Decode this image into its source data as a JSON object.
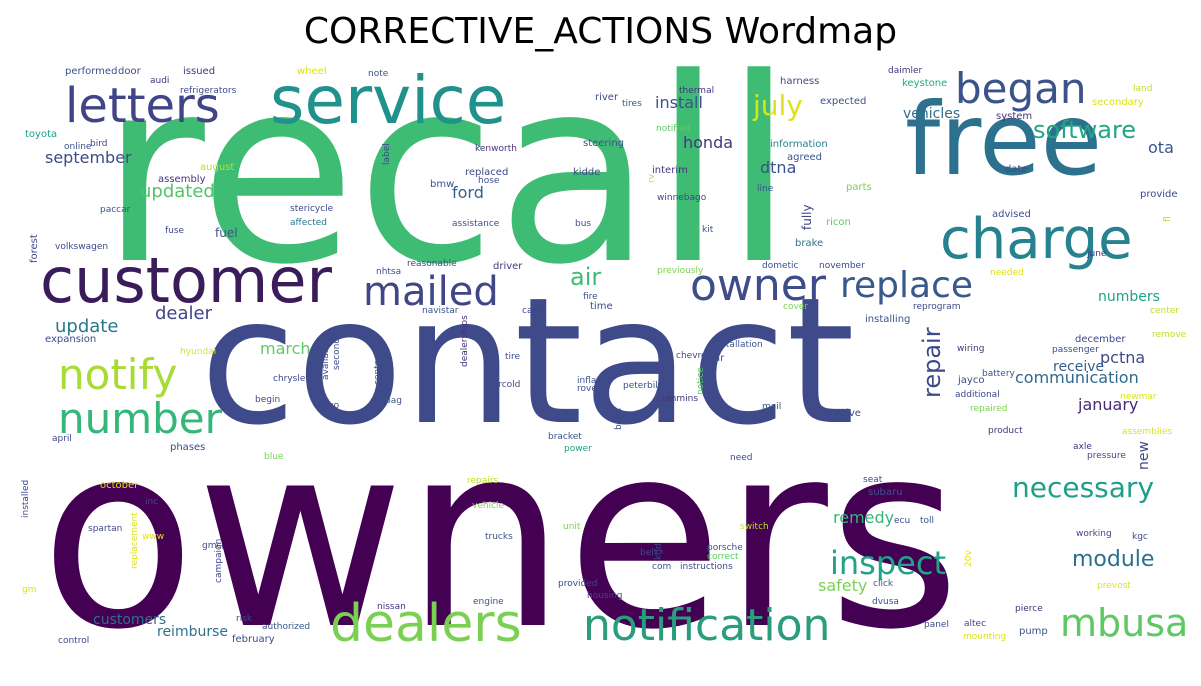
{
  "title": "CORRECTIVE_ACTIONS Wordmap",
  "words": [
    {
      "t": "owners",
      "c": "#440154"
    },
    {
      "t": "recall",
      "c": "#3fbc73"
    },
    {
      "t": "contact",
      "c": "#3e4a89"
    },
    {
      "t": "free",
      "c": "#2c728e"
    },
    {
      "t": "customer",
      "c": "#3b1c5a"
    },
    {
      "t": "service",
      "c": "#21918c"
    },
    {
      "t": "charge",
      "c": "#26828e"
    },
    {
      "t": "letters",
      "c": "#414487"
    },
    {
      "t": "dealers",
      "c": "#7ad151"
    },
    {
      "t": "notification",
      "c": "#2a9d7c"
    },
    {
      "t": "began",
      "c": "#3b528b"
    },
    {
      "t": "owner",
      "c": "#3e4c8a"
    },
    {
      "t": "replace",
      "c": "#38598c"
    },
    {
      "t": "mailed",
      "c": "#404688"
    },
    {
      "t": "mbusa",
      "c": "#5ec962"
    },
    {
      "t": "notify",
      "c": "#a8db34"
    },
    {
      "t": "number",
      "c": "#35b779"
    },
    {
      "t": "inspect",
      "c": "#20a386"
    },
    {
      "t": "necessary",
      "c": "#1f9f88"
    },
    {
      "t": "software",
      "c": "#22a785"
    },
    {
      "t": "july",
      "c": "#dde318"
    },
    {
      "t": "repair",
      "c": "#3e4a89"
    },
    {
      "t": "updated",
      "c": "#52c569"
    },
    {
      "t": "update",
      "c": "#2a788e"
    },
    {
      "t": "dealer",
      "c": "#404588"
    },
    {
      "t": "air",
      "c": "#3fbc73"
    },
    {
      "t": "march",
      "c": "#5ec962"
    },
    {
      "t": "module",
      "c": "#2d708e"
    },
    {
      "t": "remedy",
      "c": "#35b779"
    },
    {
      "t": "communication",
      "c": "#30698e"
    },
    {
      "t": "safety",
      "c": "#7ad151"
    },
    {
      "t": "ota",
      "c": "#39568c"
    },
    {
      "t": "install",
      "c": "#3b528b"
    },
    {
      "t": "honda",
      "c": "#46337e"
    },
    {
      "t": "ford",
      "c": "#33638d"
    },
    {
      "t": "september",
      "c": "#3e4989"
    },
    {
      "t": "vehicles",
      "c": "#2e6f8e"
    },
    {
      "t": "numbers",
      "c": "#1fa187"
    },
    {
      "t": "january",
      "c": "#482878"
    },
    {
      "t": "pctna",
      "c": "#3e4a89"
    },
    {
      "t": "receive",
      "c": "#355f8d"
    },
    {
      "t": "customers",
      "c": "#2d708e"
    },
    {
      "t": "reimburse",
      "c": "#2c728e"
    },
    {
      "t": "fuel",
      "c": "#3b528b"
    },
    {
      "t": "dtna",
      "c": "#3b518b"
    },
    {
      "t": "fully",
      "c": "#414487"
    },
    {
      "t": "new",
      "c": "#3e4989"
    },
    {
      "t": "performed",
      "c": "#3b528b"
    },
    {
      "t": "door",
      "c": "#3e4989"
    },
    {
      "t": "issued",
      "c": "#46337e"
    },
    {
      "t": "audi",
      "c": "#46327e"
    },
    {
      "t": "refrigerators",
      "c": "#3e4989"
    },
    {
      "t": "wheel",
      "c": "#dde318"
    },
    {
      "t": "note",
      "c": "#3b528b"
    },
    {
      "t": "thermal",
      "c": "#46337e"
    },
    {
      "t": "river",
      "c": "#3e4989"
    },
    {
      "t": "tires",
      "c": "#3b528b"
    },
    {
      "t": "harness",
      "c": "#3e4989"
    },
    {
      "t": "daimler",
      "c": "#46337e"
    },
    {
      "t": "keystone",
      "c": "#22a785"
    },
    {
      "t": "expected",
      "c": "#3b528b"
    },
    {
      "t": "secondary",
      "c": "#dde318"
    },
    {
      "t": "land",
      "c": "#bddf26"
    },
    {
      "t": "system",
      "c": "#46337e"
    },
    {
      "t": "toyota",
      "c": "#1fa187"
    },
    {
      "t": "online",
      "c": "#3b528b"
    },
    {
      "t": "bird",
      "c": "#3e4989"
    },
    {
      "t": "assembly",
      "c": "#46337e"
    },
    {
      "t": "august",
      "c": "#bddf26"
    },
    {
      "t": "steering",
      "c": "#3b528b"
    },
    {
      "t": "notified",
      "c": "#5ec962"
    },
    {
      "t": "information",
      "c": "#26828e"
    },
    {
      "t": "agreed",
      "c": "#3b528b"
    },
    {
      "t": "date",
      "c": "#3e4989"
    },
    {
      "t": "kenworth",
      "c": "#46337e"
    },
    {
      "t": "replaced",
      "c": "#3e4989"
    },
    {
      "t": "hose",
      "c": "#3b528b"
    },
    {
      "t": "kidde",
      "c": "#3e4989"
    },
    {
      "t": "interim",
      "c": "#46337e"
    },
    {
      "t": "line",
      "c": "#3b528b"
    },
    {
      "t": "parts",
      "c": "#7ad151"
    },
    {
      "t": "provide",
      "c": "#3e4989"
    },
    {
      "t": "bmw",
      "c": "#3b528b"
    },
    {
      "t": "winnebago",
      "c": "#3e4989"
    },
    {
      "t": "advised",
      "c": "#3b528b"
    },
    {
      "t": "stericycle",
      "c": "#3e4989"
    },
    {
      "t": "paccar",
      "c": "#3b528b"
    },
    {
      "t": "fuse",
      "c": "#3e4989"
    },
    {
      "t": "affected",
      "c": "#2a788e"
    },
    {
      "t": "assistance",
      "c": "#3b528b"
    },
    {
      "t": "bus",
      "c": "#3b528b"
    },
    {
      "t": "kit",
      "c": "#3b528b"
    },
    {
      "t": "ricon",
      "c": "#5ec962"
    },
    {
      "t": "volkswagen",
      "c": "#3e4989"
    },
    {
      "t": "brake",
      "c": "#2d708e"
    },
    {
      "t": "forest",
      "c": "#3e4989"
    },
    {
      "t": "nhtsa",
      "c": "#3b528b"
    },
    {
      "t": "reasonable",
      "c": "#3e4989"
    },
    {
      "t": "driver",
      "c": "#46337e"
    },
    {
      "t": "previously",
      "c": "#7ad151"
    },
    {
      "t": "dometic",
      "c": "#3b528b"
    },
    {
      "t": "november",
      "c": "#3e4989"
    },
    {
      "t": "june",
      "c": "#46337e"
    },
    {
      "t": "needed",
      "c": "#dde318"
    },
    {
      "t": "fire",
      "c": "#3b528b"
    },
    {
      "t": "time",
      "c": "#3e4989"
    },
    {
      "t": "cover",
      "c": "#7ad151"
    },
    {
      "t": "reprogram",
      "c": "#3e4989"
    },
    {
      "t": "center",
      "c": "#bddf26"
    },
    {
      "t": "navistar",
      "c": "#3b528b"
    },
    {
      "t": "cable",
      "c": "#3e4989"
    },
    {
      "t": "installing",
      "c": "#3b528b"
    },
    {
      "t": "expansion",
      "c": "#3e4989"
    },
    {
      "t": "rear",
      "c": "#3b528b"
    },
    {
      "t": "december",
      "c": "#3e4989"
    },
    {
      "t": "remove",
      "c": "#bddf26"
    },
    {
      "t": "hyundai",
      "c": "#dde318"
    },
    {
      "t": "available",
      "c": "#3b528b"
    },
    {
      "t": "second",
      "c": "#3e4989"
    },
    {
      "t": "dealerships",
      "c": "#46337e"
    },
    {
      "t": "installation",
      "c": "#3b528b"
    },
    {
      "t": "chevrolet",
      "c": "#3e4989"
    },
    {
      "t": "passenger",
      "c": "#3e4989"
    },
    {
      "t": "wiring",
      "c": "#46337e"
    },
    {
      "t": "tire",
      "c": "#3e4989"
    },
    {
      "t": "notice",
      "c": "#5ec962"
    },
    {
      "t": "jayco",
      "c": "#3e4989"
    },
    {
      "t": "battery",
      "c": "#3b528b"
    },
    {
      "t": "chrysler",
      "c": "#3e4989"
    },
    {
      "t": "inflator",
      "c": "#3b528b"
    },
    {
      "t": "rover",
      "c": "#3b528b"
    },
    {
      "t": "centers",
      "c": "#3b528b"
    },
    {
      "t": "begin",
      "c": "#3e4989"
    },
    {
      "t": "bag",
      "c": "#3b528b"
    },
    {
      "t": "norcold",
      "c": "#3e4989"
    },
    {
      "t": "peterbilt",
      "c": "#3b528b"
    },
    {
      "t": "cummins",
      "c": "#46337e"
    },
    {
      "t": "additional",
      "c": "#3e4989"
    },
    {
      "t": "volvo",
      "c": "#3e4989"
    },
    {
      "t": "mail",
      "c": "#3b528b"
    },
    {
      "t": "valve",
      "c": "#3e4989"
    },
    {
      "t": "repaired",
      "c": "#7ad151"
    },
    {
      "t": "april",
      "c": "#3e4989"
    },
    {
      "t": "bolts",
      "c": "#3e4989"
    },
    {
      "t": "bracket",
      "c": "#3b528b"
    },
    {
      "t": "power",
      "c": "#1fa187"
    },
    {
      "t": "product",
      "c": "#46337e"
    },
    {
      "t": "assemblies",
      "c": "#dde318"
    },
    {
      "t": "phases",
      "c": "#3e4989"
    },
    {
      "t": "blue",
      "c": "#7ad151"
    },
    {
      "t": "need",
      "c": "#3e4989"
    },
    {
      "t": "axle",
      "c": "#46337e"
    },
    {
      "t": "pressure",
      "c": "#3e4989"
    },
    {
      "t": "october",
      "c": "#dde318"
    },
    {
      "t": "repairs",
      "c": "#bddf26"
    },
    {
      "t": "vehicle",
      "c": "#7ad151"
    },
    {
      "t": "seat",
      "c": "#3e4989"
    },
    {
      "t": "subaru",
      "c": "#3b528b"
    },
    {
      "t": "inc",
      "c": "#3e4989"
    },
    {
      "t": "installed",
      "c": "#3e4989"
    },
    {
      "t": "replacement",
      "c": "#dde318"
    },
    {
      "t": "spartan",
      "c": "#3e4989"
    },
    {
      "t": "www",
      "c": "#dde318"
    },
    {
      "t": "unit",
      "c": "#7ad151"
    },
    {
      "t": "switch",
      "c": "#bddf26"
    },
    {
      "t": "ecu",
      "c": "#3e4989"
    },
    {
      "t": "toll",
      "c": "#3b528b"
    },
    {
      "t": "working",
      "c": "#3e4989"
    },
    {
      "t": "kgc",
      "c": "#3e4989"
    },
    {
      "t": "gmc",
      "c": "#3e4989"
    },
    {
      "t": "campaign",
      "c": "#3e4989"
    },
    {
      "t": "trucks",
      "c": "#3b528b"
    },
    {
      "t": "belt",
      "c": "#3e4989"
    },
    {
      "t": "kgd",
      "c": "#3e4989"
    },
    {
      "t": "porsche",
      "c": "#3b528b"
    },
    {
      "t": "correct",
      "c": "#5ec962"
    },
    {
      "t": "20v",
      "c": "#dde318"
    },
    {
      "t": "com",
      "c": "#3b528b"
    },
    {
      "t": "instructions",
      "c": "#3e4989"
    },
    {
      "t": "provided",
      "c": "#3e4989"
    },
    {
      "t": "click",
      "c": "#3b528b"
    },
    {
      "t": "prevost",
      "c": "#dde318"
    },
    {
      "t": "gm",
      "c": "#dde318"
    },
    {
      "t": "housing",
      "c": "#3e4989"
    },
    {
      "t": "dvusa",
      "c": "#3b528b"
    },
    {
      "t": "engine",
      "c": "#3b528b"
    },
    {
      "t": "nissan",
      "c": "#46337e"
    },
    {
      "t": "pierce",
      "c": "#46337e"
    },
    {
      "t": "risk",
      "c": "#3e4989"
    },
    {
      "t": "authorized",
      "c": "#3b528b"
    },
    {
      "t": "panel",
      "c": "#3e4989"
    },
    {
      "t": "altec",
      "c": "#3e4989"
    },
    {
      "t": "pump",
      "c": "#3b528b"
    },
    {
      "t": "mounting",
      "c": "#dde318"
    },
    {
      "t": "control",
      "c": "#3e4989"
    },
    {
      "t": "february",
      "c": "#3e4989"
    },
    {
      "t": "fl",
      "c": "#bddf26"
    },
    {
      "t": "rv",
      "c": "#bddf26"
    },
    {
      "t": "label",
      "c": "#3e4989"
    },
    {
      "t": "newmar",
      "c": "#dde318"
    }
  ]
}
